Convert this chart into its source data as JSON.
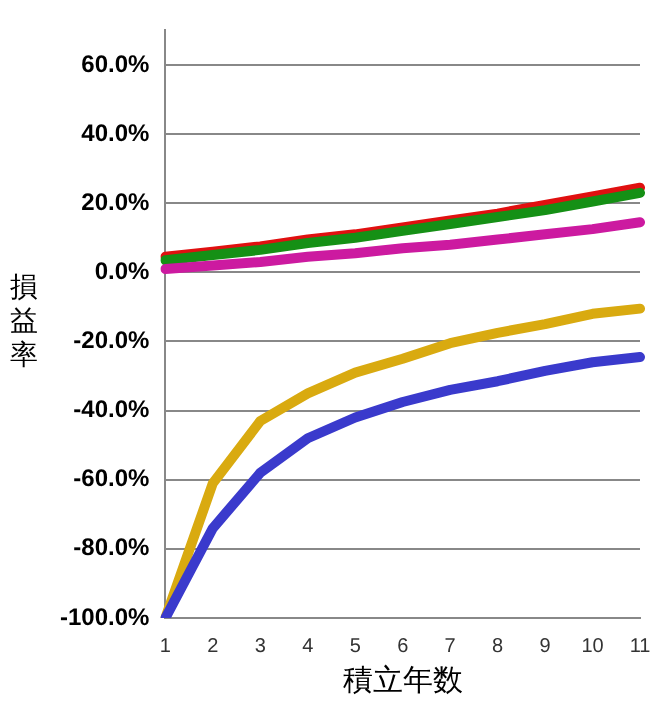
{
  "chart_data": {
    "type": "line",
    "xlabel": "積立年数",
    "ylabel": "損益率",
    "categories": [
      "1",
      "2",
      "3",
      "4",
      "5",
      "6",
      "7",
      "8",
      "9",
      "10",
      "11"
    ],
    "series": [
      {
        "color": "#e01010",
        "values": [
          4.5,
          6,
          7.5,
          9.5,
          11,
          13,
          15,
          17,
          19.5,
          22,
          24.5
        ]
      },
      {
        "color": "#159015",
        "values": [
          3.5,
          5,
          6.5,
          8.5,
          10,
          12,
          14,
          16,
          18,
          20.5,
          23
        ]
      },
      {
        "color": "#cc1aa0",
        "values": [
          1,
          2,
          3,
          4.5,
          5.5,
          7,
          8,
          9.5,
          11,
          12.5,
          14.5
        ]
      },
      {
        "color": "#d9aa10",
        "values": [
          -100,
          -61,
          -43,
          -35,
          -29,
          -25,
          -20.5,
          -17.5,
          -15,
          -12,
          -10.5
        ]
      },
      {
        "color": "#3a3acc",
        "values": [
          -100,
          -74,
          -58,
          -48,
          -42,
          -37.5,
          -34,
          -31.5,
          -28.5,
          -26,
          -24.5
        ]
      }
    ],
    "ylim": [
      -100,
      70
    ],
    "yticks": [
      {
        "value": -100,
        "label": "-100.0%"
      },
      {
        "value": -80,
        "label": "-80.0%"
      },
      {
        "value": -60,
        "label": "-60.0%"
      },
      {
        "value": -40,
        "label": "-40.0%"
      },
      {
        "value": -20,
        "label": "-20.0%"
      },
      {
        "value": 0,
        "label": "0.0%"
      },
      {
        "value": 20,
        "label": "20.0%"
      },
      {
        "value": 40,
        "label": "40.0%"
      },
      {
        "value": 60,
        "label": "60.0%"
      }
    ],
    "grid": "y",
    "legend": false,
    "marker": "none",
    "line_style": "solid"
  }
}
